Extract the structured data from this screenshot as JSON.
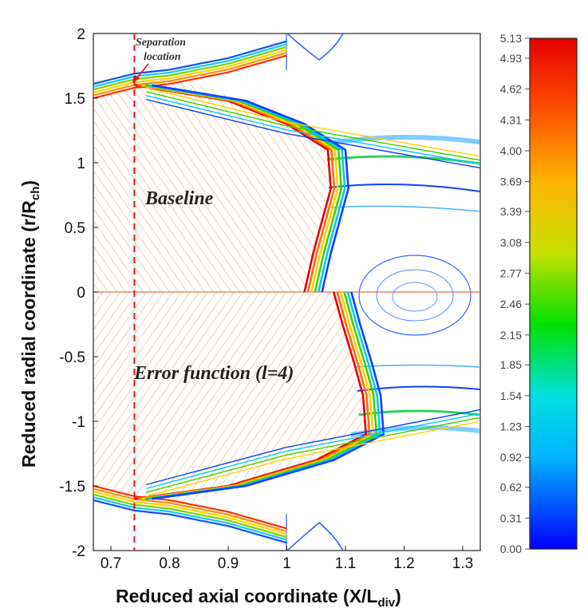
{
  "chart_data": {
    "type": "contour",
    "xlabel": "Reduced axial coordinate (X/L",
    "xlabel_sub": "div",
    "xlabel_end": ")",
    "ylabel": "Reduced radial coordinate (r/R",
    "ylabel_sub": "ch",
    "ylabel_end": ")",
    "xlim": [
      0.67,
      1.33
    ],
    "ylim": [
      -2,
      2
    ],
    "x_ticks": [
      "0.7",
      "0.8",
      "0.9",
      "1",
      "1.1",
      "1.2",
      "1.3"
    ],
    "y_ticks": [
      "2",
      "1.5",
      "1",
      "0.5",
      "0",
      "-0.5",
      "-1",
      "-1.5",
      "-2"
    ],
    "colorbar": {
      "min": 0.0,
      "max": 5.13,
      "ticks": [
        "5.13",
        "4.93",
        "4.62",
        "4.31",
        "4.00",
        "3.69",
        "3.39",
        "3.08",
        "2.77",
        "2.46",
        "2.15",
        "1.85",
        "1.54",
        "1.23",
        "0.92",
        "0.62",
        "0.31",
        "0.00"
      ],
      "colors": [
        "#0000ff",
        "#00b4ff",
        "#00e0e0",
        "#00e000",
        "#c8e000",
        "#ffb400",
        "#ff5000",
        "#e60000"
      ]
    },
    "separation": {
      "x": 0.74,
      "label_line1": "Separation",
      "label_line2": "location",
      "color": "#e8141e"
    },
    "regions": [
      {
        "label": "Baseline",
        "x": 0.77,
        "y": 0.75
      },
      {
        "label": "Error function (l=4)",
        "x": 0.77,
        "y": -0.65
      }
    ],
    "nozzle_wall": [
      {
        "x": 0.67,
        "r": 1.5
      },
      {
        "x": 0.74,
        "r": 1.58
      },
      {
        "x": 0.8,
        "r": 1.61
      },
      {
        "x": 0.9,
        "r": 1.7
      },
      {
        "x": 1.0,
        "r": 1.83
      }
    ],
    "shock_baseline": [
      {
        "x": 0.74,
        "r": 1.6
      },
      {
        "x": 0.9,
        "r": 1.48
      },
      {
        "x": 1.0,
        "r": 1.3
      },
      {
        "x": 1.07,
        "r": 1.1
      },
      {
        "x": 1.075,
        "r": 0.8
      },
      {
        "x": 1.06,
        "r": 0.55
      },
      {
        "x": 1.045,
        "r": 0.3
      },
      {
        "x": 1.03,
        "r": 0.0
      }
    ],
    "shock_error_function": [
      {
        "x": 0.74,
        "r": -1.6
      },
      {
        "x": 0.9,
        "r": -1.5
      },
      {
        "x": 1.05,
        "r": -1.3
      },
      {
        "x": 1.135,
        "r": -1.1
      },
      {
        "x": 1.13,
        "r": -0.8
      },
      {
        "x": 1.115,
        "r": -0.55
      },
      {
        "x": 1.095,
        "r": -0.25
      },
      {
        "x": 1.08,
        "r": 0.0
      }
    ],
    "plume_edges": [
      {
        "r_start": 1.58,
        "r_end": 1.05
      },
      {
        "r_start": -1.58,
        "r_end": -1.0
      }
    ]
  }
}
